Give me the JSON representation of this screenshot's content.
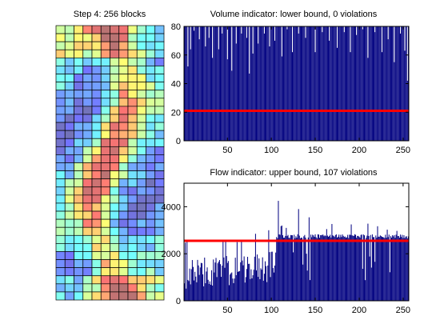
{
  "figure": {
    "left_title": "Step 4: 256 blocks",
    "colors": {
      "bar": "#000080",
      "threshold": "#ff0000",
      "block_edge": "#000000",
      "axis": "#000000"
    }
  },
  "chart_data": [
    {
      "type": "heatmap",
      "title": "Step 4: 256 blocks",
      "colormap": "jet (pastel)",
      "n_blocks": 256,
      "grid": false,
      "axes_visible": false
    },
    {
      "type": "bar",
      "title": "Volume indicator: lower bound, 0 violations",
      "xlabel": "",
      "ylabel": "",
      "xlim": [
        1,
        256
      ],
      "ylim": [
        0,
        80
      ],
      "xticks": [
        50,
        100,
        150,
        200,
        250
      ],
      "yticks": [
        0,
        20,
        40,
        60,
        80
      ],
      "threshold": 21,
      "threshold_label": "",
      "n_bars": 256,
      "values_note": "bars 1..256; most values exceed the axis top (80), a few dip to ~40-79",
      "dips": [
        [
          5,
          52
        ],
        [
          8,
          64
        ],
        [
          12,
          77
        ],
        [
          18,
          71
        ],
        [
          25,
          66
        ],
        [
          29,
          72
        ],
        [
          33,
          58
        ],
        [
          40,
          64
        ],
        [
          44,
          75
        ],
        [
          50,
          57
        ],
        [
          55,
          49
        ],
        [
          60,
          68
        ],
        [
          66,
          75
        ],
        [
          72,
          72
        ],
        [
          75,
          47
        ],
        [
          79,
          61
        ],
        [
          85,
          68
        ],
        [
          92,
          75
        ],
        [
          98,
          66
        ],
        [
          104,
          70
        ],
        [
          112,
          59
        ],
        [
          118,
          78
        ],
        [
          124,
          62
        ],
        [
          131,
          75
        ],
        [
          139,
          72
        ],
        [
          150,
          62
        ],
        [
          158,
          76
        ],
        [
          166,
          70
        ],
        [
          175,
          65
        ],
        [
          183,
          76
        ],
        [
          190,
          62
        ],
        [
          197,
          74
        ],
        [
          204,
          78
        ],
        [
          210,
          58
        ],
        [
          218,
          76
        ],
        [
          226,
          62
        ],
        [
          233,
          71
        ],
        [
          240,
          55
        ],
        [
          247,
          75
        ],
        [
          252,
          63
        ],
        [
          255,
          42
        ]
      ]
    },
    {
      "type": "bar",
      "title": "Flow indicator: upper bound, 107 violations",
      "xlabel": "",
      "ylabel": "",
      "xlim": [
        1,
        256
      ],
      "ylim": [
        0,
        5000
      ],
      "xticks": [
        50,
        100,
        150,
        200,
        250
      ],
      "yticks": [
        0,
        2000,
        4000
      ],
      "threshold": 2550,
      "threshold_label": "",
      "n_bars": 256,
      "values_note": "bars 1..~105 mostly 500-1800 with spikes to ~2600; bars ~106..256 mostly ~2700-2800; peak ~4250 at ~108",
      "spikes": [
        [
          108,
          4250
        ],
        [
          131,
          3900
        ],
        [
          143,
          3550
        ],
        [
          112,
          3200
        ],
        [
          117,
          3100
        ],
        [
          163,
          3050
        ],
        [
          210,
          3280
        ],
        [
          97,
          3000
        ],
        [
          82,
          2850
        ],
        [
          66,
          2600
        ],
        [
          45,
          2550
        ]
      ]
    }
  ]
}
